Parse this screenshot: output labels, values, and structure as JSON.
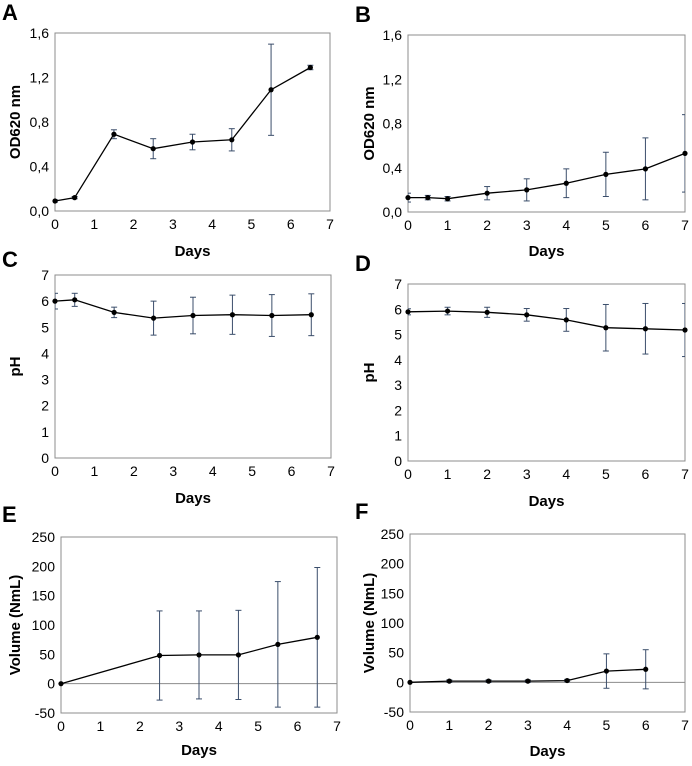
{
  "chart_data": [
    {
      "panel": "A",
      "type": "line",
      "xlabel": "Days",
      "ylabel": "OD620 nm",
      "xlim": [
        0,
        7
      ],
      "ylim": [
        0,
        1.6
      ],
      "xticks": [
        "0",
        "1",
        "2",
        "3",
        "4",
        "5",
        "6",
        "7"
      ],
      "yticks": [
        "0,0",
        "0,4",
        "0,8",
        "1,2",
        "1,6"
      ],
      "x": [
        0,
        0.5,
        1.5,
        2.5,
        3.5,
        4.5,
        5.5,
        6.5
      ],
      "y": [
        0.09,
        0.12,
        0.69,
        0.56,
        0.62,
        0.64,
        1.09,
        1.29
      ],
      "err": [
        0.01,
        0.01,
        0.04,
        0.09,
        0.07,
        0.1,
        0.41,
        0.02
      ]
    },
    {
      "panel": "B",
      "type": "line",
      "xlabel": "Days",
      "ylabel": "OD620 nm",
      "xlim": [
        0,
        7
      ],
      "ylim": [
        0,
        1.6
      ],
      "xticks": [
        "0",
        "1",
        "2",
        "3",
        "4",
        "5",
        "6",
        "7"
      ],
      "yticks": [
        "0,0",
        "0,4",
        "0,8",
        "1,2",
        "1,6"
      ],
      "x": [
        0,
        0.5,
        1,
        2,
        3,
        4,
        5,
        6,
        7
      ],
      "y": [
        0.13,
        0.13,
        0.12,
        0.17,
        0.2,
        0.26,
        0.34,
        0.39,
        0.53
      ],
      "err": [
        0.04,
        0.02,
        0.02,
        0.06,
        0.1,
        0.13,
        0.2,
        0.28,
        0.35
      ]
    },
    {
      "panel": "C",
      "type": "line",
      "xlabel": "Days",
      "ylabel": "pH",
      "xlim": [
        0,
        7
      ],
      "ylim": [
        0,
        7
      ],
      "xticks": [
        "0",
        "1",
        "2",
        "3",
        "4",
        "5",
        "6",
        "7"
      ],
      "yticks": [
        "0",
        "1",
        "2",
        "3",
        "4",
        "5",
        "6",
        "7"
      ],
      "x": [
        0,
        0.5,
        1.5,
        2.5,
        3.5,
        4.5,
        5.5,
        6.5
      ],
      "y": [
        6.0,
        6.05,
        5.57,
        5.35,
        5.45,
        5.48,
        5.45,
        5.48
      ],
      "err": [
        0.3,
        0.25,
        0.2,
        0.65,
        0.7,
        0.75,
        0.8,
        0.8
      ]
    },
    {
      "panel": "D",
      "type": "line",
      "xlabel": "Days",
      "ylabel": "pH",
      "xlim": [
        0,
        7
      ],
      "ylim": [
        0,
        7
      ],
      "xticks": [
        "0",
        "1",
        "2",
        "3",
        "4",
        "5",
        "6",
        "7"
      ],
      "yticks": [
        "0",
        "1",
        "2",
        "3",
        "4",
        "5",
        "6",
        "7"
      ],
      "x": [
        0,
        1,
        2,
        3,
        4,
        5,
        6,
        7
      ],
      "y": [
        5.9,
        5.93,
        5.88,
        5.78,
        5.58,
        5.27,
        5.23,
        5.18
      ],
      "err": [
        0.12,
        0.15,
        0.2,
        0.25,
        0.45,
        0.92,
        1.0,
        1.05
      ]
    },
    {
      "panel": "E",
      "type": "line",
      "xlabel": "Days",
      "ylabel": "Volume (NmL)",
      "xlim": [
        0,
        7
      ],
      "ylim": [
        -50,
        250
      ],
      "xticks": [
        "0",
        "1",
        "2",
        "3",
        "4",
        "5",
        "6",
        "7"
      ],
      "yticks": [
        "-50",
        "0",
        "50",
        "100",
        "150",
        "200",
        "250"
      ],
      "x": [
        0,
        2.5,
        3.5,
        4.5,
        5.5,
        6.5
      ],
      "y": [
        0,
        48,
        49,
        49,
        67,
        79
      ],
      "err": [
        0,
        76,
        75,
        76,
        107,
        119
      ]
    },
    {
      "panel": "F",
      "type": "line",
      "xlabel": "Days",
      "ylabel": "Volume (NmL)",
      "xlim": [
        0,
        7
      ],
      "ylim": [
        -50,
        250
      ],
      "xticks": [
        "0",
        "1",
        "2",
        "3",
        "4",
        "5",
        "6",
        "7"
      ],
      "yticks": [
        "-50",
        "0",
        "50",
        "100",
        "150",
        "200",
        "250"
      ],
      "x": [
        0,
        1,
        2,
        3,
        4,
        5,
        6
      ],
      "y": [
        0,
        2,
        2,
        2,
        3,
        19,
        22
      ],
      "err": [
        0,
        2,
        2,
        2,
        2,
        29,
        33
      ]
    }
  ]
}
